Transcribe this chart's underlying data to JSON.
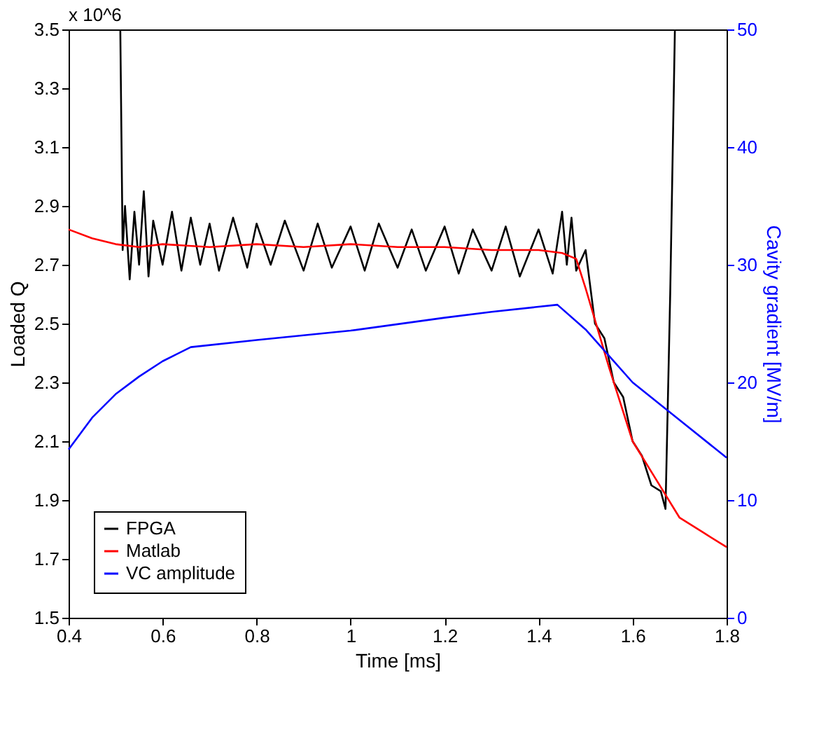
{
  "chart_data": {
    "type": "line",
    "xlabel": "Time [ms]",
    "ylabel": "Loaded Q",
    "y2label": "Cavity gradient [MV/m]",
    "annotations": [
      "x 10^6"
    ],
    "xlim": [
      0.4,
      1.8
    ],
    "xticks": [
      0.4,
      0.6,
      0.8,
      1,
      1.2,
      1.4,
      1.6,
      1.8
    ],
    "ylim": [
      1.5,
      3.5
    ],
    "yticks": [
      1.5,
      1.7,
      1.9,
      2.1,
      2.3,
      2.5,
      2.7,
      2.9,
      3.1,
      3.3,
      3.5
    ],
    "y2lim": [
      0,
      50
    ],
    "y2ticks": [
      0,
      10,
      20,
      30,
      40,
      50
    ],
    "grid": false,
    "legend": "bottom left",
    "marker": "none",
    "line_style": "solid",
    "series": [
      {
        "name": "FPGA",
        "color": "#000000",
        "x": [
          0.51,
          0.515,
          0.52,
          0.53,
          0.54,
          0.55,
          0.56,
          0.57,
          0.58,
          0.6,
          0.62,
          0.64,
          0.66,
          0.68,
          0.7,
          0.72,
          0.75,
          0.78,
          0.8,
          0.83,
          0.86,
          0.9,
          0.93,
          0.96,
          1.0,
          1.03,
          1.06,
          1.1,
          1.13,
          1.16,
          1.2,
          1.23,
          1.26,
          1.3,
          1.33,
          1.36,
          1.4,
          1.43,
          1.45,
          1.46,
          1.47,
          1.48,
          1.5,
          1.52,
          1.54,
          1.56,
          1.58,
          1.6,
          1.62,
          1.64,
          1.66,
          1.67,
          1.68,
          1.69
        ],
        "values": [
          3.5,
          2.75,
          2.9,
          2.65,
          2.88,
          2.7,
          2.95,
          2.66,
          2.85,
          2.7,
          2.88,
          2.68,
          2.86,
          2.7,
          2.84,
          2.68,
          2.86,
          2.69,
          2.84,
          2.7,
          2.85,
          2.68,
          2.84,
          2.69,
          2.83,
          2.68,
          2.84,
          2.69,
          2.82,
          2.68,
          2.83,
          2.67,
          2.82,
          2.68,
          2.83,
          2.66,
          2.82,
          2.67,
          2.88,
          2.7,
          2.86,
          2.68,
          2.75,
          2.5,
          2.45,
          2.3,
          2.25,
          2.1,
          2.05,
          1.95,
          1.93,
          1.87,
          2.6,
          3.5
        ]
      },
      {
        "name": "Matlab",
        "color": "#ff0000",
        "x": [
          0.4,
          0.45,
          0.5,
          0.55,
          0.6,
          0.7,
          0.8,
          0.9,
          1.0,
          1.1,
          1.2,
          1.3,
          1.4,
          1.45,
          1.48,
          1.5,
          1.55,
          1.6,
          1.65,
          1.7,
          1.75,
          1.8
        ],
        "values": [
          2.82,
          2.79,
          2.77,
          2.76,
          2.77,
          2.76,
          2.77,
          2.76,
          2.77,
          2.76,
          2.76,
          2.75,
          2.75,
          2.74,
          2.72,
          2.62,
          2.35,
          2.1,
          1.97,
          1.84,
          1.79,
          1.74
        ]
      },
      {
        "name": "VC amplitude",
        "color": "#0000ff",
        "axis": "y2",
        "x": [
          0.4,
          0.45,
          0.5,
          0.55,
          0.6,
          0.66,
          0.8,
          1.0,
          1.2,
          1.3,
          1.44,
          1.5,
          1.6,
          1.7,
          1.8
        ],
        "values": [
          14.3,
          17,
          19,
          20.5,
          21.8,
          23,
          23.6,
          24.4,
          25.5,
          26,
          26.6,
          24.5,
          20,
          16.8,
          13.6
        ]
      }
    ]
  }
}
